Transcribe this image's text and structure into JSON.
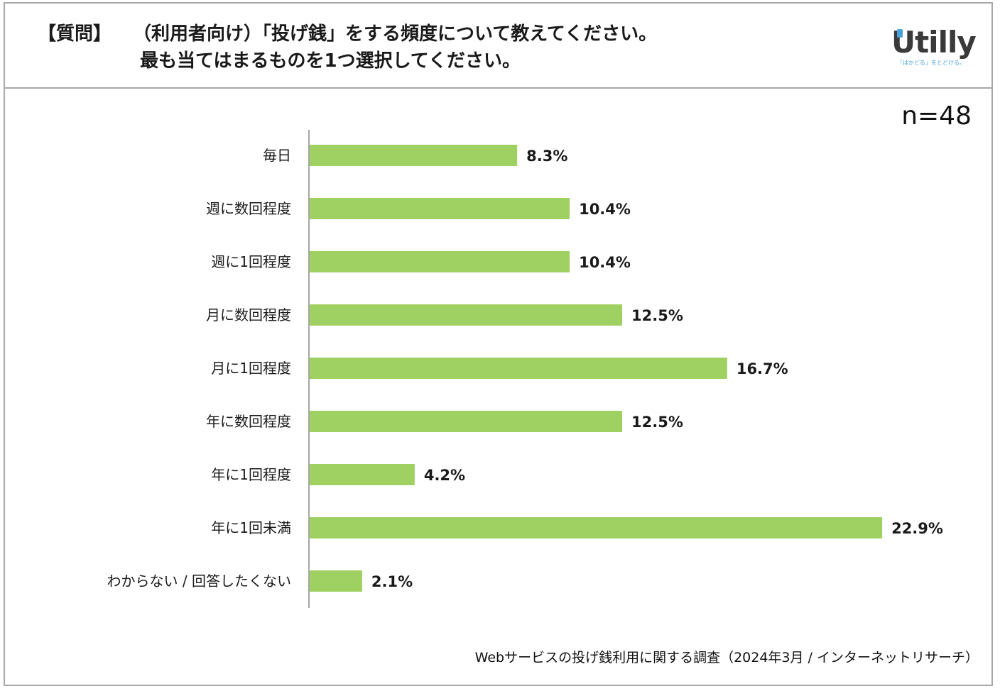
{
  "header": {
    "tag": "【質問】",
    "question_line1": "（利用者向け）「投げ銭」をする頻度について教えてください。",
    "question_line2": "最も当てはまるものを1つ選択してください。"
  },
  "logo": {
    "word": "Utilly",
    "tagline": "「はかどる」をとどける。",
    "accent_color": "#4aa3d8"
  },
  "sample_size": "n=48",
  "source": "Webサービスの投げ銭利用に関する調査（2024年3月 / インターネットリサーチ）",
  "chart_data": {
    "type": "bar",
    "orientation": "horizontal",
    "categories": [
      "毎日",
      "週に数回程度",
      "週に1回程度",
      "月に数回程度",
      "月に1回程度",
      "年に数回程度",
      "年に1回程度",
      "年に1回未満",
      "わからない / 回答したくない"
    ],
    "values": [
      8.3,
      10.4,
      10.4,
      12.5,
      16.7,
      12.5,
      4.2,
      22.9,
      2.1
    ],
    "value_labels": [
      "8.3%",
      "10.4%",
      "10.4%",
      "12.5%",
      "16.7%",
      "12.5%",
      "4.2%",
      "22.9%",
      "2.1%"
    ],
    "bar_color": "#9fd062",
    "axis_color": "#888888",
    "xlim": [
      0,
      25
    ],
    "grid": false,
    "legend": "none"
  }
}
